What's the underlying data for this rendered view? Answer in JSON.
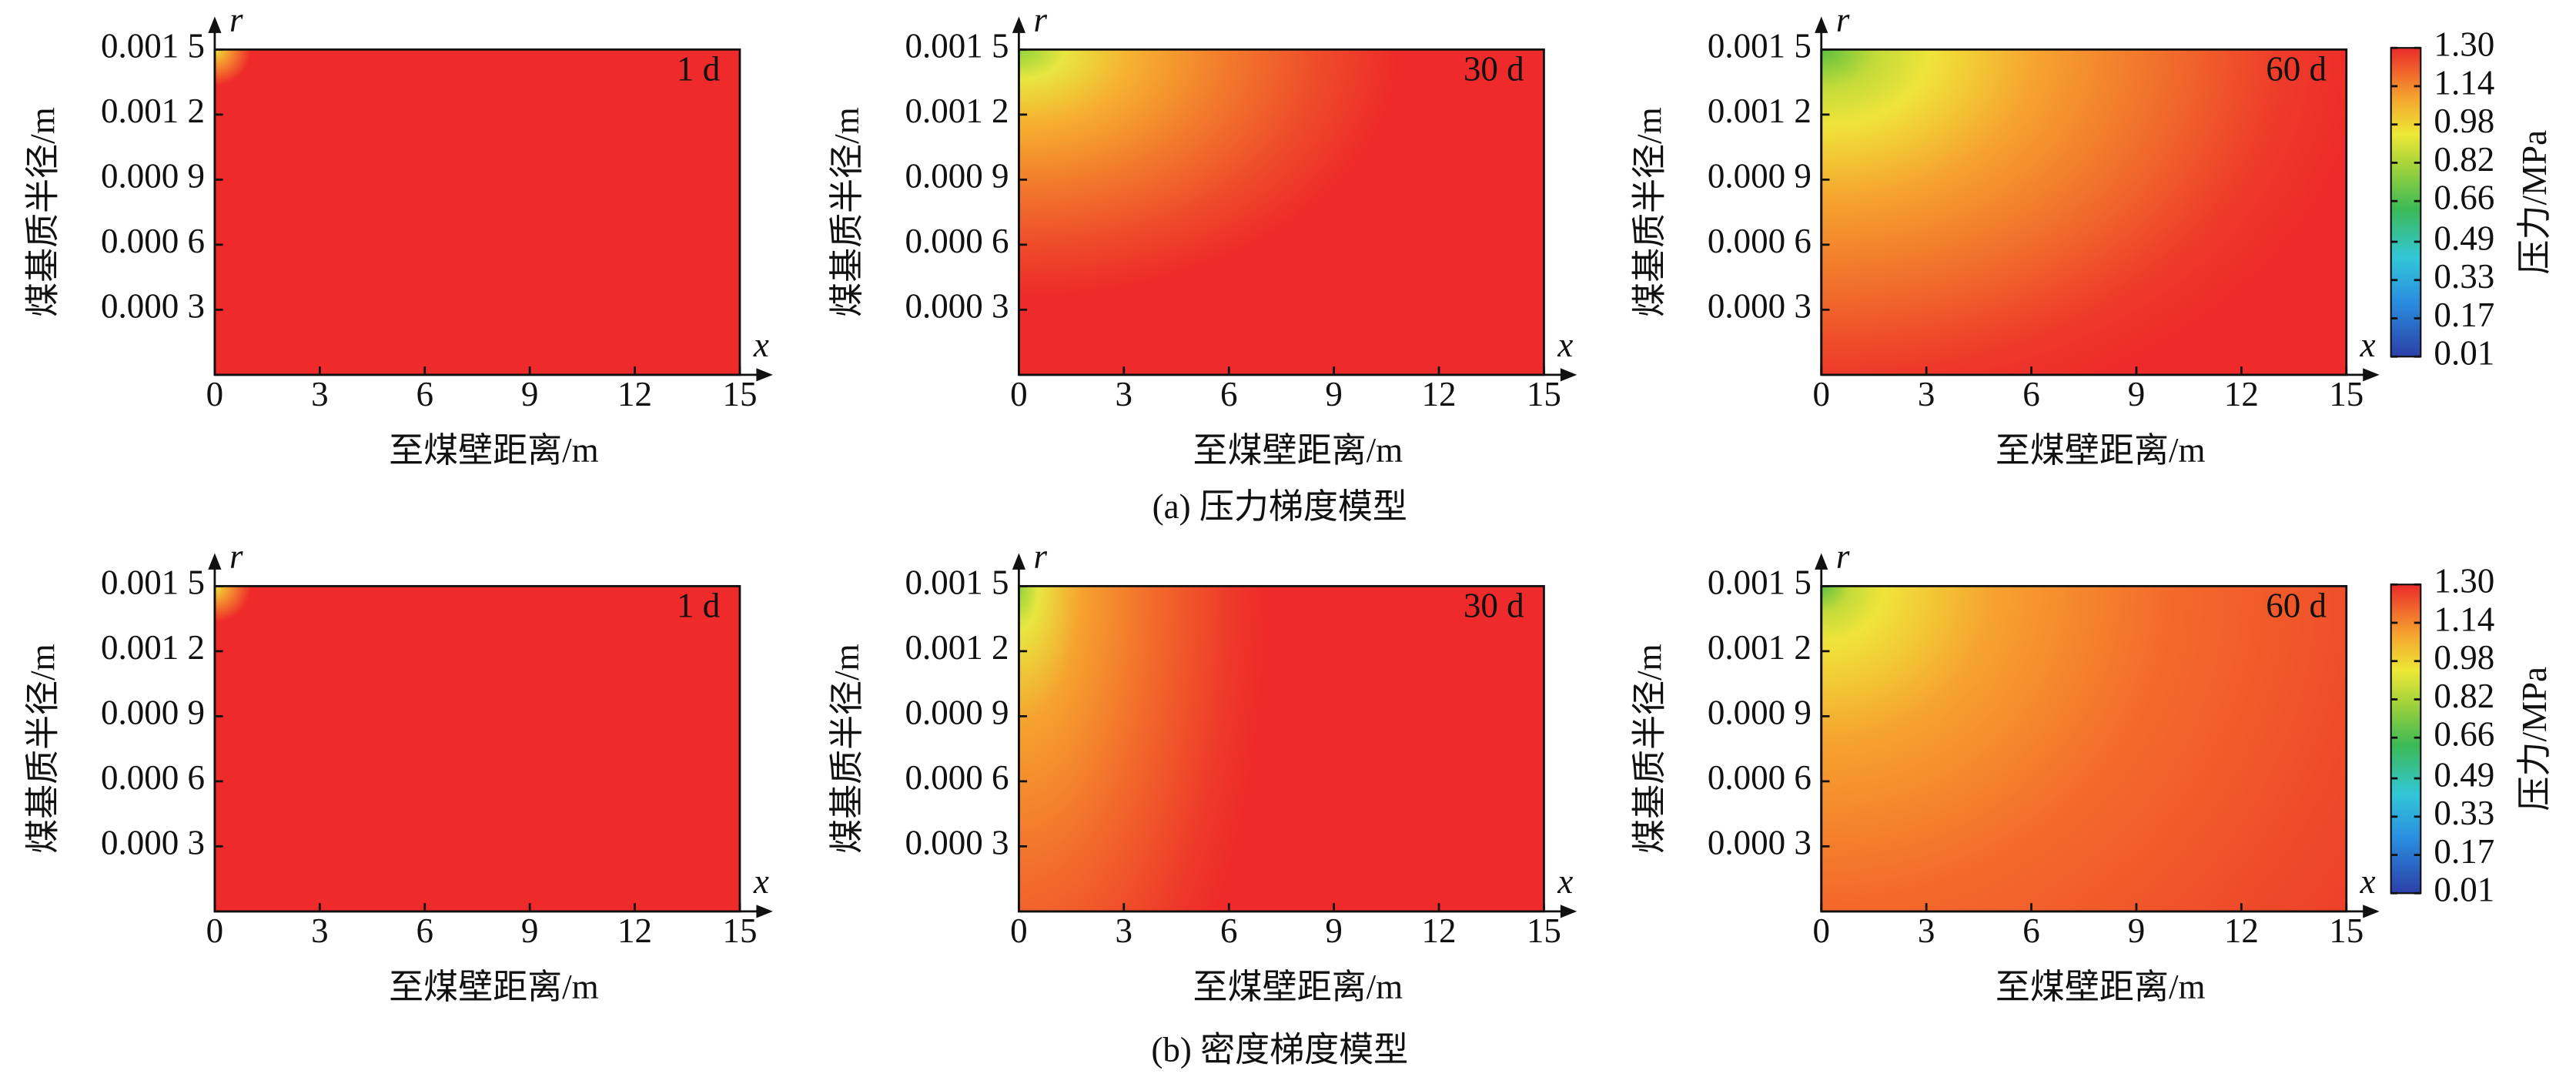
{
  "chart_data": [
    {
      "type": "contour",
      "title": "1 d",
      "xlabel": "至煤壁距离/m",
      "ylabel": "煤基质半径/m",
      "x_symbol": "x",
      "y_symbol": "r",
      "xlim": [
        0,
        15
      ],
      "ylim": [
        0,
        0.0015
      ],
      "xticks": [
        0,
        3,
        6,
        9,
        12,
        15
      ],
      "yticks": [
        {
          "value": 0.0003,
          "label": "0.000 3"
        },
        {
          "value": 0.0006,
          "label": "0.000 6"
        },
        {
          "value": 0.0009,
          "label": "0.000 9"
        },
        {
          "value": 0.0012,
          "label": "0.001 2"
        },
        {
          "value": 0.0015,
          "label": "0.001 5"
        }
      ]
    },
    {
      "type": "contour",
      "title": "30 d",
      "xlabel": "至煤壁距离/m",
      "ylabel": "煤基质半径/m",
      "x_symbol": "x",
      "y_symbol": "r",
      "xlim": [
        0,
        15
      ],
      "ylim": [
        0,
        0.0015
      ],
      "xticks": [
        0,
        3,
        6,
        9,
        12,
        15
      ],
      "yticks": [
        {
          "value": 0.0003,
          "label": "0.000 3"
        },
        {
          "value": 0.0006,
          "label": "0.000 6"
        },
        {
          "value": 0.0009,
          "label": "0.000 9"
        },
        {
          "value": 0.0012,
          "label": "0.001 2"
        },
        {
          "value": 0.0015,
          "label": "0.001 5"
        }
      ]
    },
    {
      "type": "contour",
      "title": "60 d",
      "xlabel": "至煤壁距离/m",
      "ylabel": "煤基质半径/m",
      "x_symbol": "x",
      "y_symbol": "r",
      "xlim": [
        0,
        15
      ],
      "ylim": [
        0,
        0.0015
      ],
      "xticks": [
        0,
        3,
        6,
        9,
        12,
        15
      ],
      "yticks": [
        {
          "value": 0.0003,
          "label": "0.000 3"
        },
        {
          "value": 0.0006,
          "label": "0.000 6"
        },
        {
          "value": 0.0009,
          "label": "0.000 9"
        },
        {
          "value": 0.0012,
          "label": "0.001 2"
        },
        {
          "value": 0.0015,
          "label": "0.001 5"
        }
      ],
      "colorbar": {
        "label": "压力/MPa",
        "lim": [
          0.01,
          1.3
        ],
        "ticks": [
          0.01,
          0.17,
          0.33,
          0.49,
          0.66,
          0.82,
          0.98,
          1.14,
          {
            "value": 1.3,
            "label": "1.30"
          }
        ]
      }
    },
    {
      "type": "contour",
      "title": "1 d",
      "xlabel": "至煤壁距离/m",
      "ylabel": "煤基质半径/m",
      "x_symbol": "x",
      "y_symbol": "r",
      "xlim": [
        0,
        15
      ],
      "ylim": [
        0,
        0.0015
      ],
      "xticks": [
        0,
        3,
        6,
        9,
        12,
        15
      ],
      "yticks": [
        {
          "value": 0.0003,
          "label": "0.000 3"
        },
        {
          "value": 0.0006,
          "label": "0.000 6"
        },
        {
          "value": 0.0009,
          "label": "0.000 9"
        },
        {
          "value": 0.0012,
          "label": "0.001 2"
        },
        {
          "value": 0.0015,
          "label": "0.001 5"
        }
      ]
    },
    {
      "type": "contour",
      "title": "30 d",
      "xlabel": "至煤壁距离/m",
      "ylabel": "煤基质半径/m",
      "x_symbol": "x",
      "y_symbol": "r",
      "xlim": [
        0,
        15
      ],
      "ylim": [
        0,
        0.0015
      ],
      "xticks": [
        0,
        3,
        6,
        9,
        12,
        15
      ],
      "yticks": [
        {
          "value": 0.0003,
          "label": "0.000 3"
        },
        {
          "value": 0.0006,
          "label": "0.000 6"
        },
        {
          "value": 0.0009,
          "label": "0.000 9"
        },
        {
          "value": 0.0012,
          "label": "0.001 2"
        },
        {
          "value": 0.0015,
          "label": "0.001 5"
        }
      ]
    },
    {
      "type": "contour",
      "title": "60 d",
      "xlabel": "至煤壁距离/m",
      "ylabel": "煤基质半径/m",
      "x_symbol": "x",
      "y_symbol": "r",
      "xlim": [
        0,
        15
      ],
      "ylim": [
        0,
        0.0015
      ],
      "xticks": [
        0,
        3,
        6,
        9,
        12,
        15
      ],
      "yticks": [
        {
          "value": 0.0003,
          "label": "0.000 3"
        },
        {
          "value": 0.0006,
          "label": "0.000 6"
        },
        {
          "value": 0.0009,
          "label": "0.000 9"
        },
        {
          "value": 0.0012,
          "label": "0.001 2"
        },
        {
          "value": 0.0015,
          "label": "0.001 5"
        }
      ],
      "colorbar": {
        "label": "压力/MPa",
        "lim": [
          0.01,
          1.3
        ],
        "ticks": [
          0.01,
          0.17,
          0.33,
          0.49,
          0.66,
          0.82,
          0.98,
          1.14,
          {
            "value": 1.3,
            "label": "1.30"
          }
        ]
      }
    }
  ],
  "captions": [
    "(a) 压力梯度模型",
    "(b) 密度梯度模型"
  ]
}
